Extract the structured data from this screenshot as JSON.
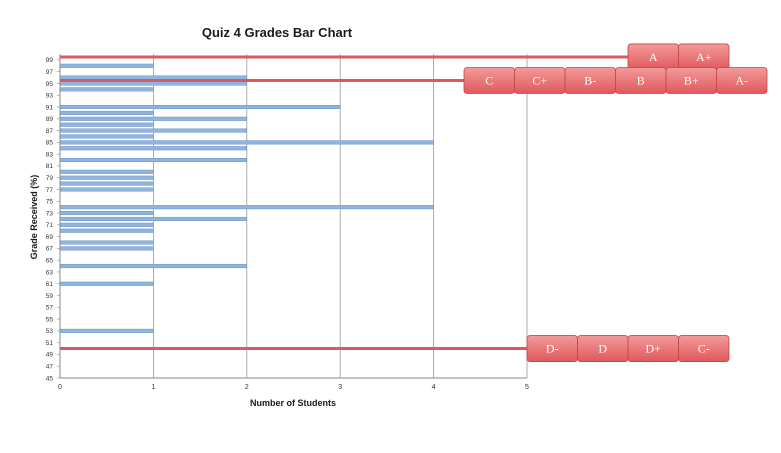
{
  "chart_data": {
    "type": "bar",
    "orientation": "horizontal",
    "title": "Quiz 4 Grades Bar Chart",
    "xlabel": "Number of Students",
    "ylabel": "Grade Received (%)",
    "xlim": [
      0,
      5
    ],
    "ylim": [
      45,
      100
    ],
    "x_ticks": [
      "0",
      "1",
      "2",
      "3",
      "4",
      "5"
    ],
    "y_ticks": [
      "45",
      "47",
      "49",
      "51",
      "53",
      "55",
      "57",
      "59",
      "61",
      "63",
      "65",
      "67",
      "69",
      "71",
      "73",
      "75",
      "77",
      "79",
      "81",
      "83",
      "85",
      "87",
      "89",
      "91",
      "93",
      "95",
      "97",
      "99"
    ],
    "grid": "vertical",
    "categories": [
      53,
      61,
      64,
      67,
      68,
      70,
      71,
      72,
      73,
      74,
      77,
      78,
      79,
      80,
      82,
      84,
      85,
      86,
      87,
      88,
      89,
      90,
      91,
      94,
      95,
      96,
      98
    ],
    "values": [
      1,
      1,
      2,
      1,
      1,
      1,
      1,
      2,
      1,
      4,
      1,
      1,
      1,
      1,
      2,
      2,
      4,
      1,
      2,
      1,
      2,
      1,
      3,
      1,
      2,
      2,
      1
    ],
    "bar_color": "#8fb4de",
    "bar_edge_color": "#5b86be",
    "cutoff_color": "#d9595e",
    "cutoffs": [
      {
        "at": 99.5,
        "labels": [
          "A",
          "A+"
        ]
      },
      {
        "at": 95.5,
        "labels": [
          "C",
          "C+",
          "B-",
          "B",
          "B+",
          "A-"
        ]
      },
      {
        "at": 50,
        "labels": [
          "D-",
          "D",
          "D+",
          "C-"
        ]
      }
    ]
  },
  "colors": {
    "button_fill_top": "#f08a8a",
    "button_fill_bottom": "#e05458",
    "button_stroke": "#c44448",
    "grid": "#9a9a9a",
    "axis": "#8a8a8a"
  }
}
